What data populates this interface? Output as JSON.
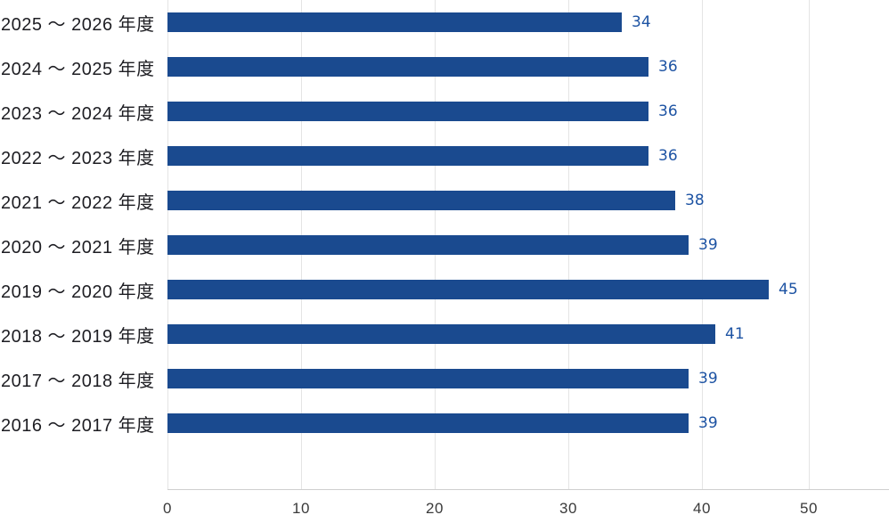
{
  "chart_data": {
    "type": "bar",
    "orientation": "horizontal",
    "title": "",
    "xlabel": "",
    "ylabel": "",
    "categories": [
      "2025 〜 2026 年度",
      "2024 〜 2025 年度",
      "2023 〜 2024 年度",
      "2022 〜 2023 年度",
      "2021 〜 2022 年度",
      "2020 〜 2021 年度",
      "2019 〜 2020 年度",
      "2018 〜 2019 年度",
      "2017 〜 2018 年度",
      "2016 〜 2017 年度"
    ],
    "values": [
      34,
      36,
      36,
      36,
      38,
      39,
      45,
      41,
      39,
      39
    ],
    "x_ticks": [
      "0",
      "10",
      "20",
      "30",
      "40",
      "50"
    ],
    "xlim": [
      0,
      54
    ],
    "grid": "vertical",
    "legend": "none",
    "colors": {
      "bar": "#1a4a8f",
      "value_label": "#1d53a3",
      "gridline": "#e4e4e4",
      "axis_line": "#cfcfcf",
      "tick_label": "#3a3a3a",
      "category_label": "#1d1d22"
    }
  }
}
